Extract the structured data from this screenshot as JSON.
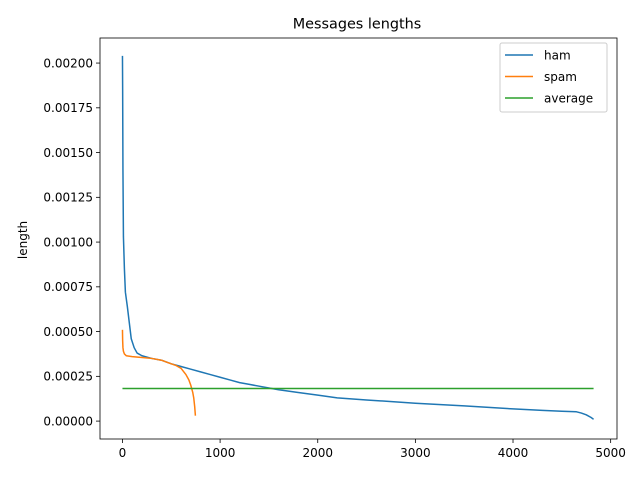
{
  "chart_data": {
    "type": "line",
    "title": "Messages lengths",
    "xlabel": "",
    "ylabel": "length",
    "xlim": [
      -230,
      5065
    ],
    "ylim": [
      -0.0001,
      0.00214
    ],
    "xticks": [
      0,
      1000,
      2000,
      3000,
      4000,
      5000
    ],
    "xtick_labels": [
      "0",
      "1000",
      "2000",
      "3000",
      "4000",
      "5000"
    ],
    "yticks": [
      0,
      0.00025,
      0.0005,
      0.00075,
      0.001,
      0.00125,
      0.0015,
      0.00175,
      0.002
    ],
    "ytick_labels": [
      "0.00000",
      "0.00025",
      "0.00050",
      "0.00075",
      "0.00100",
      "0.00125",
      "0.00150",
      "0.00175",
      "0.00200"
    ],
    "grid": false,
    "legend_position": "top-right",
    "series": [
      {
        "name": "ham",
        "color": "#1f77b4",
        "x": [
          0,
          2,
          5,
          10,
          20,
          30,
          50,
          70,
          90,
          120,
          150,
          200,
          300,
          400,
          500,
          600,
          700,
          800,
          900,
          1000,
          1100,
          1200,
          1300,
          1400,
          1500,
          1600,
          1800,
          2000,
          2200,
          2500,
          3000,
          3500,
          4000,
          4300,
          4500,
          4650,
          4700,
          4750,
          4800,
          4825
        ],
        "y": [
          0.00204,
          0.00185,
          0.0014,
          0.00103,
          0.00085,
          0.00072,
          0.00064,
          0.00055,
          0.00046,
          0.00041,
          0.00038,
          0.000365,
          0.00035,
          0.00034,
          0.00032,
          0.000305,
          0.00029,
          0.000275,
          0.00026,
          0.000245,
          0.00023,
          0.000215,
          0.000205,
          0.000195,
          0.000185,
          0.000175,
          0.00016,
          0.000145,
          0.00013,
          0.000118,
          0.0001,
          8.5e-05,
          6.8e-05,
          6e-05,
          5.5e-05,
          5.2e-05,
          4.5e-05,
          3.5e-05,
          2e-05,
          1e-05
        ]
      },
      {
        "name": "spam",
        "color": "#ff7f0e",
        "x": [
          0,
          2,
          5,
          10,
          20,
          40,
          100,
          200,
          300,
          400,
          450,
          500,
          550,
          600,
          650,
          680,
          700,
          720,
          730,
          740,
          747
        ],
        "y": [
          0.00051,
          0.00045,
          0.00041,
          0.00039,
          0.000375,
          0.000365,
          0.00036,
          0.000355,
          0.00035,
          0.00034,
          0.00033,
          0.00032,
          0.00031,
          0.000295,
          0.00026,
          0.00023,
          0.0002,
          0.00016,
          0.00013,
          8e-05,
          3e-05
        ]
      },
      {
        "name": "average",
        "color": "#2ca02c",
        "x": [
          0,
          4825
        ],
        "y": [
          0.000182,
          0.000182
        ]
      }
    ]
  }
}
